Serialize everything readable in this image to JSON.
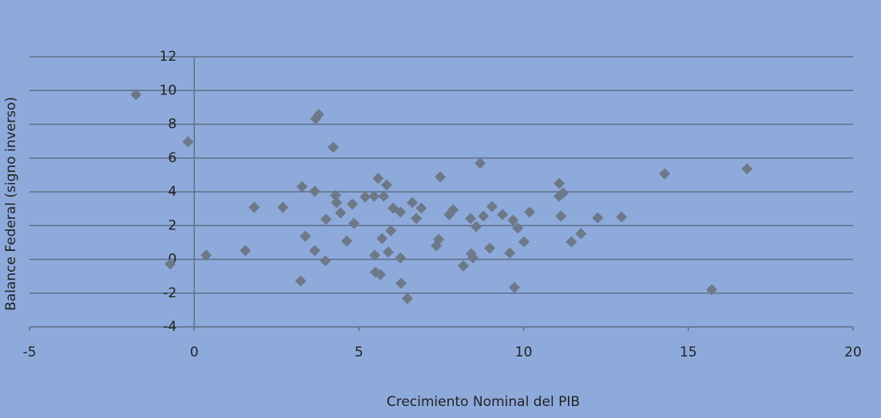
{
  "chart_data": {
    "type": "scatter",
    "x_label": "Crecimiento Nominal del PIB",
    "y_label": "Balance Federal (signo inverso)",
    "xlim": [
      -5,
      20
    ],
    "ylim": [
      -4,
      12
    ],
    "xticks": [
      -5,
      0,
      5,
      10,
      15,
      20
    ],
    "yticks": [
      -4,
      -2,
      0,
      2,
      4,
      6,
      8,
      10,
      12
    ],
    "grid": true,
    "color": "#6d7889",
    "x": [
      -1.77,
      -0.19,
      -0.73,
      0.36,
      1.55,
      1.82,
      2.69,
      3.23,
      3.27,
      3.37,
      3.66,
      3.69,
      3.78,
      3.66,
      4.0,
      3.98,
      4.22,
      4.29,
      4.32,
      4.44,
      4.63,
      4.8,
      4.85,
      5.19,
      5.46,
      5.58,
      5.48,
      5.5,
      5.65,
      5.7,
      5.75,
      5.84,
      5.89,
      5.97,
      6.04,
      6.26,
      6.26,
      6.28,
      6.47,
      6.62,
      6.74,
      6.89,
      7.35,
      7.42,
      7.47,
      7.74,
      7.86,
      8.17,
      8.39,
      8.41,
      8.46,
      8.56,
      8.68,
      8.78,
      8.97,
      9.04,
      9.36,
      9.58,
      9.68,
      9.72,
      9.82,
      10.01,
      10.18,
      11.08,
      11.08,
      11.2,
      11.13,
      11.45,
      11.74,
      12.25,
      12.97,
      14.28,
      15.71,
      16.78
    ],
    "values": [
      9.76,
      6.97,
      -0.28,
      0.24,
      0.52,
      3.08,
      3.08,
      -1.28,
      4.31,
      1.37,
      4.03,
      8.34,
      8.58,
      0.52,
      2.37,
      -0.09,
      6.64,
      3.79,
      3.36,
      2.75,
      1.09,
      3.27,
      2.13,
      3.7,
      3.74,
      4.79,
      0.24,
      -0.76,
      -0.9,
      1.23,
      3.74,
      4.41,
      0.43,
      1.7,
      3.03,
      0.09,
      2.8,
      -1.42,
      -2.32,
      3.36,
      2.42,
      3.03,
      0.81,
      1.18,
      4.88,
      2.65,
      2.94,
      -0.38,
      2.42,
      0.33,
      0.09,
      1.94,
      5.69,
      2.56,
      0.66,
      3.13,
      2.65,
      0.38,
      2.32,
      -1.66,
      1.85,
      1.04,
      2.8,
      4.5,
      3.74,
      3.93,
      2.56,
      1.04,
      1.52,
      2.46,
      2.51,
      5.07,
      -1.8,
      5.36
    ]
  }
}
